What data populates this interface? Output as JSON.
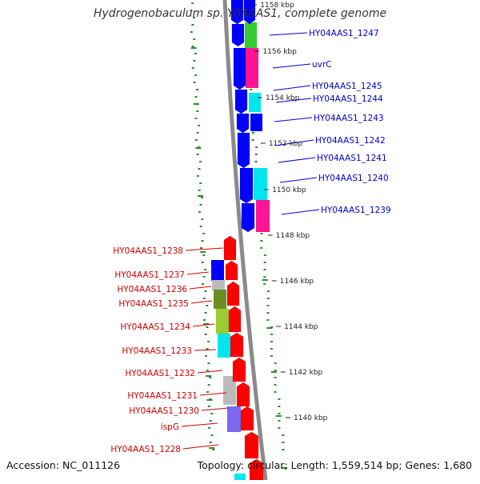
{
  "title": "Hydrogenobaculum sp. Y04AAS1, complete genome",
  "footer": {
    "accession": "Accession: NC_011126",
    "stats": "Topology: circular; Length: 1,559,514 bp; Genes: 1,680"
  },
  "colors": {
    "backbone": "#8a8a8a",
    "forward_label": "#0000c8",
    "reverse_label": "#d00000",
    "gc_plot": "#2e8b2e",
    "blue": "#0000ff",
    "green": "#33cc33",
    "magenta": "#ff1493",
    "cyan": "#00e5ee",
    "red": "#ff0000",
    "gray": "#bbbbbb",
    "olive": "#6b8e23",
    "yellowgreen": "#9acd32",
    "slateblue": "#7b68ee"
  },
  "scale_labels": [
    "1158 kbp",
    "1156 kbp",
    "1154 kbp",
    "1152 kbp",
    "1150 kbp",
    "1148 kbp",
    "1146 kbp",
    "1144 kbp",
    "1142 kbp",
    "1140 kbp"
  ],
  "forward_genes": [
    "HY04AAS1_1247",
    "uvrC",
    "HY04AAS1_1245",
    "HY04AAS1_1244",
    "HY04AAS1_1243",
    "HY04AAS1_1242",
    "HY04AAS1_1241",
    "HY04AAS1_1240",
    "HY04AAS1_1239"
  ],
  "reverse_genes": [
    "HY04AAS1_1238",
    "HY04AAS1_1237",
    "HY04AAS1_1236",
    "HY04AAS1_1235",
    "HY04AAS1_1234",
    "HY04AAS1_1233",
    "HY04AAS1_1232",
    "HY04AAS1_1231",
    "HY04AAS1_1230",
    "ispG",
    "HY04AAS1_1228"
  ]
}
